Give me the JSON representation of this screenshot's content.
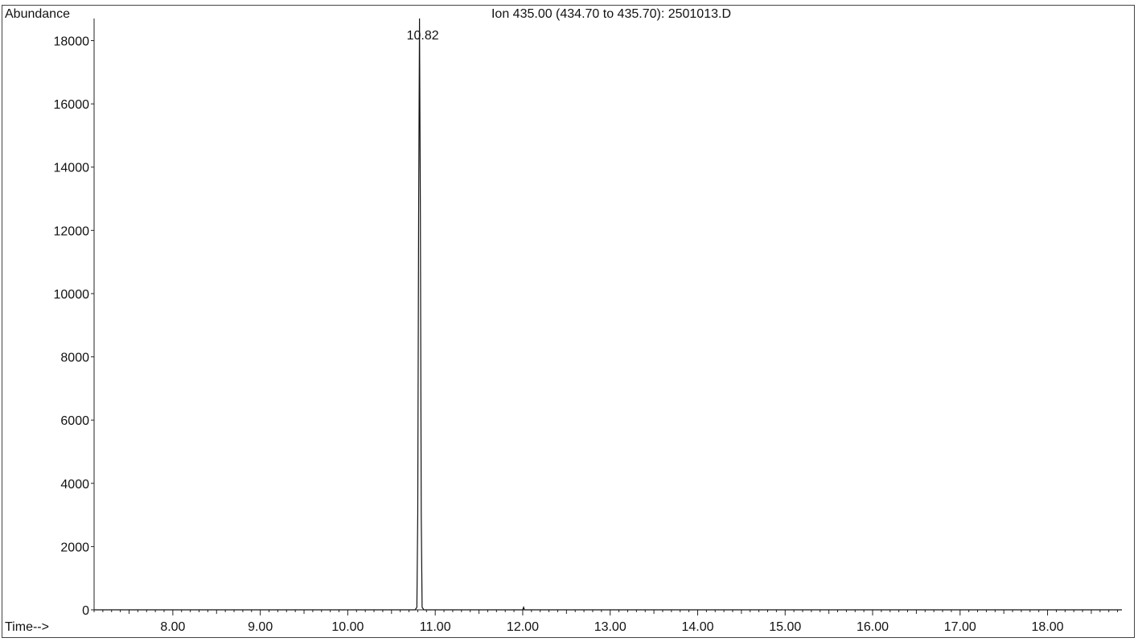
{
  "chart_data": {
    "type": "line",
    "title": "Ion 435.00 (434.70 to 435.70): 2501013.D",
    "ylabel": "Abundance",
    "xlabel": "Time-->",
    "xlim": [
      7.1,
      18.85
    ],
    "ylim": [
      0,
      18700
    ],
    "xticks": [
      8,
      9,
      10,
      11,
      12,
      13,
      14,
      15,
      16,
      17,
      18
    ],
    "xtick_labels": [
      "8.00",
      "9.00",
      "10.00",
      "11.00",
      "12.00",
      "13.00",
      "14.00",
      "15.00",
      "16.00",
      "17.00",
      "18.00"
    ],
    "yticks": [
      0,
      2000,
      4000,
      6000,
      8000,
      10000,
      12000,
      14000,
      16000,
      18000
    ],
    "ytick_labels": [
      "0",
      "2000",
      "4000",
      "6000",
      "8000",
      "10000",
      "12000",
      "14000",
      "16000",
      "18000"
    ],
    "peak_label": "10.82",
    "peak_label_x": 10.82,
    "series": [
      {
        "x": [
          7.1,
          10.77,
          10.79,
          10.8,
          10.81,
          10.82,
          10.83,
          10.84,
          10.85,
          10.87,
          12.0,
          12.01,
          12.02,
          18.85
        ],
        "y": [
          0,
          0,
          80,
          3000,
          12500,
          18700,
          12500,
          3000,
          80,
          0,
          0,
          80,
          0,
          0
        ]
      }
    ]
  }
}
